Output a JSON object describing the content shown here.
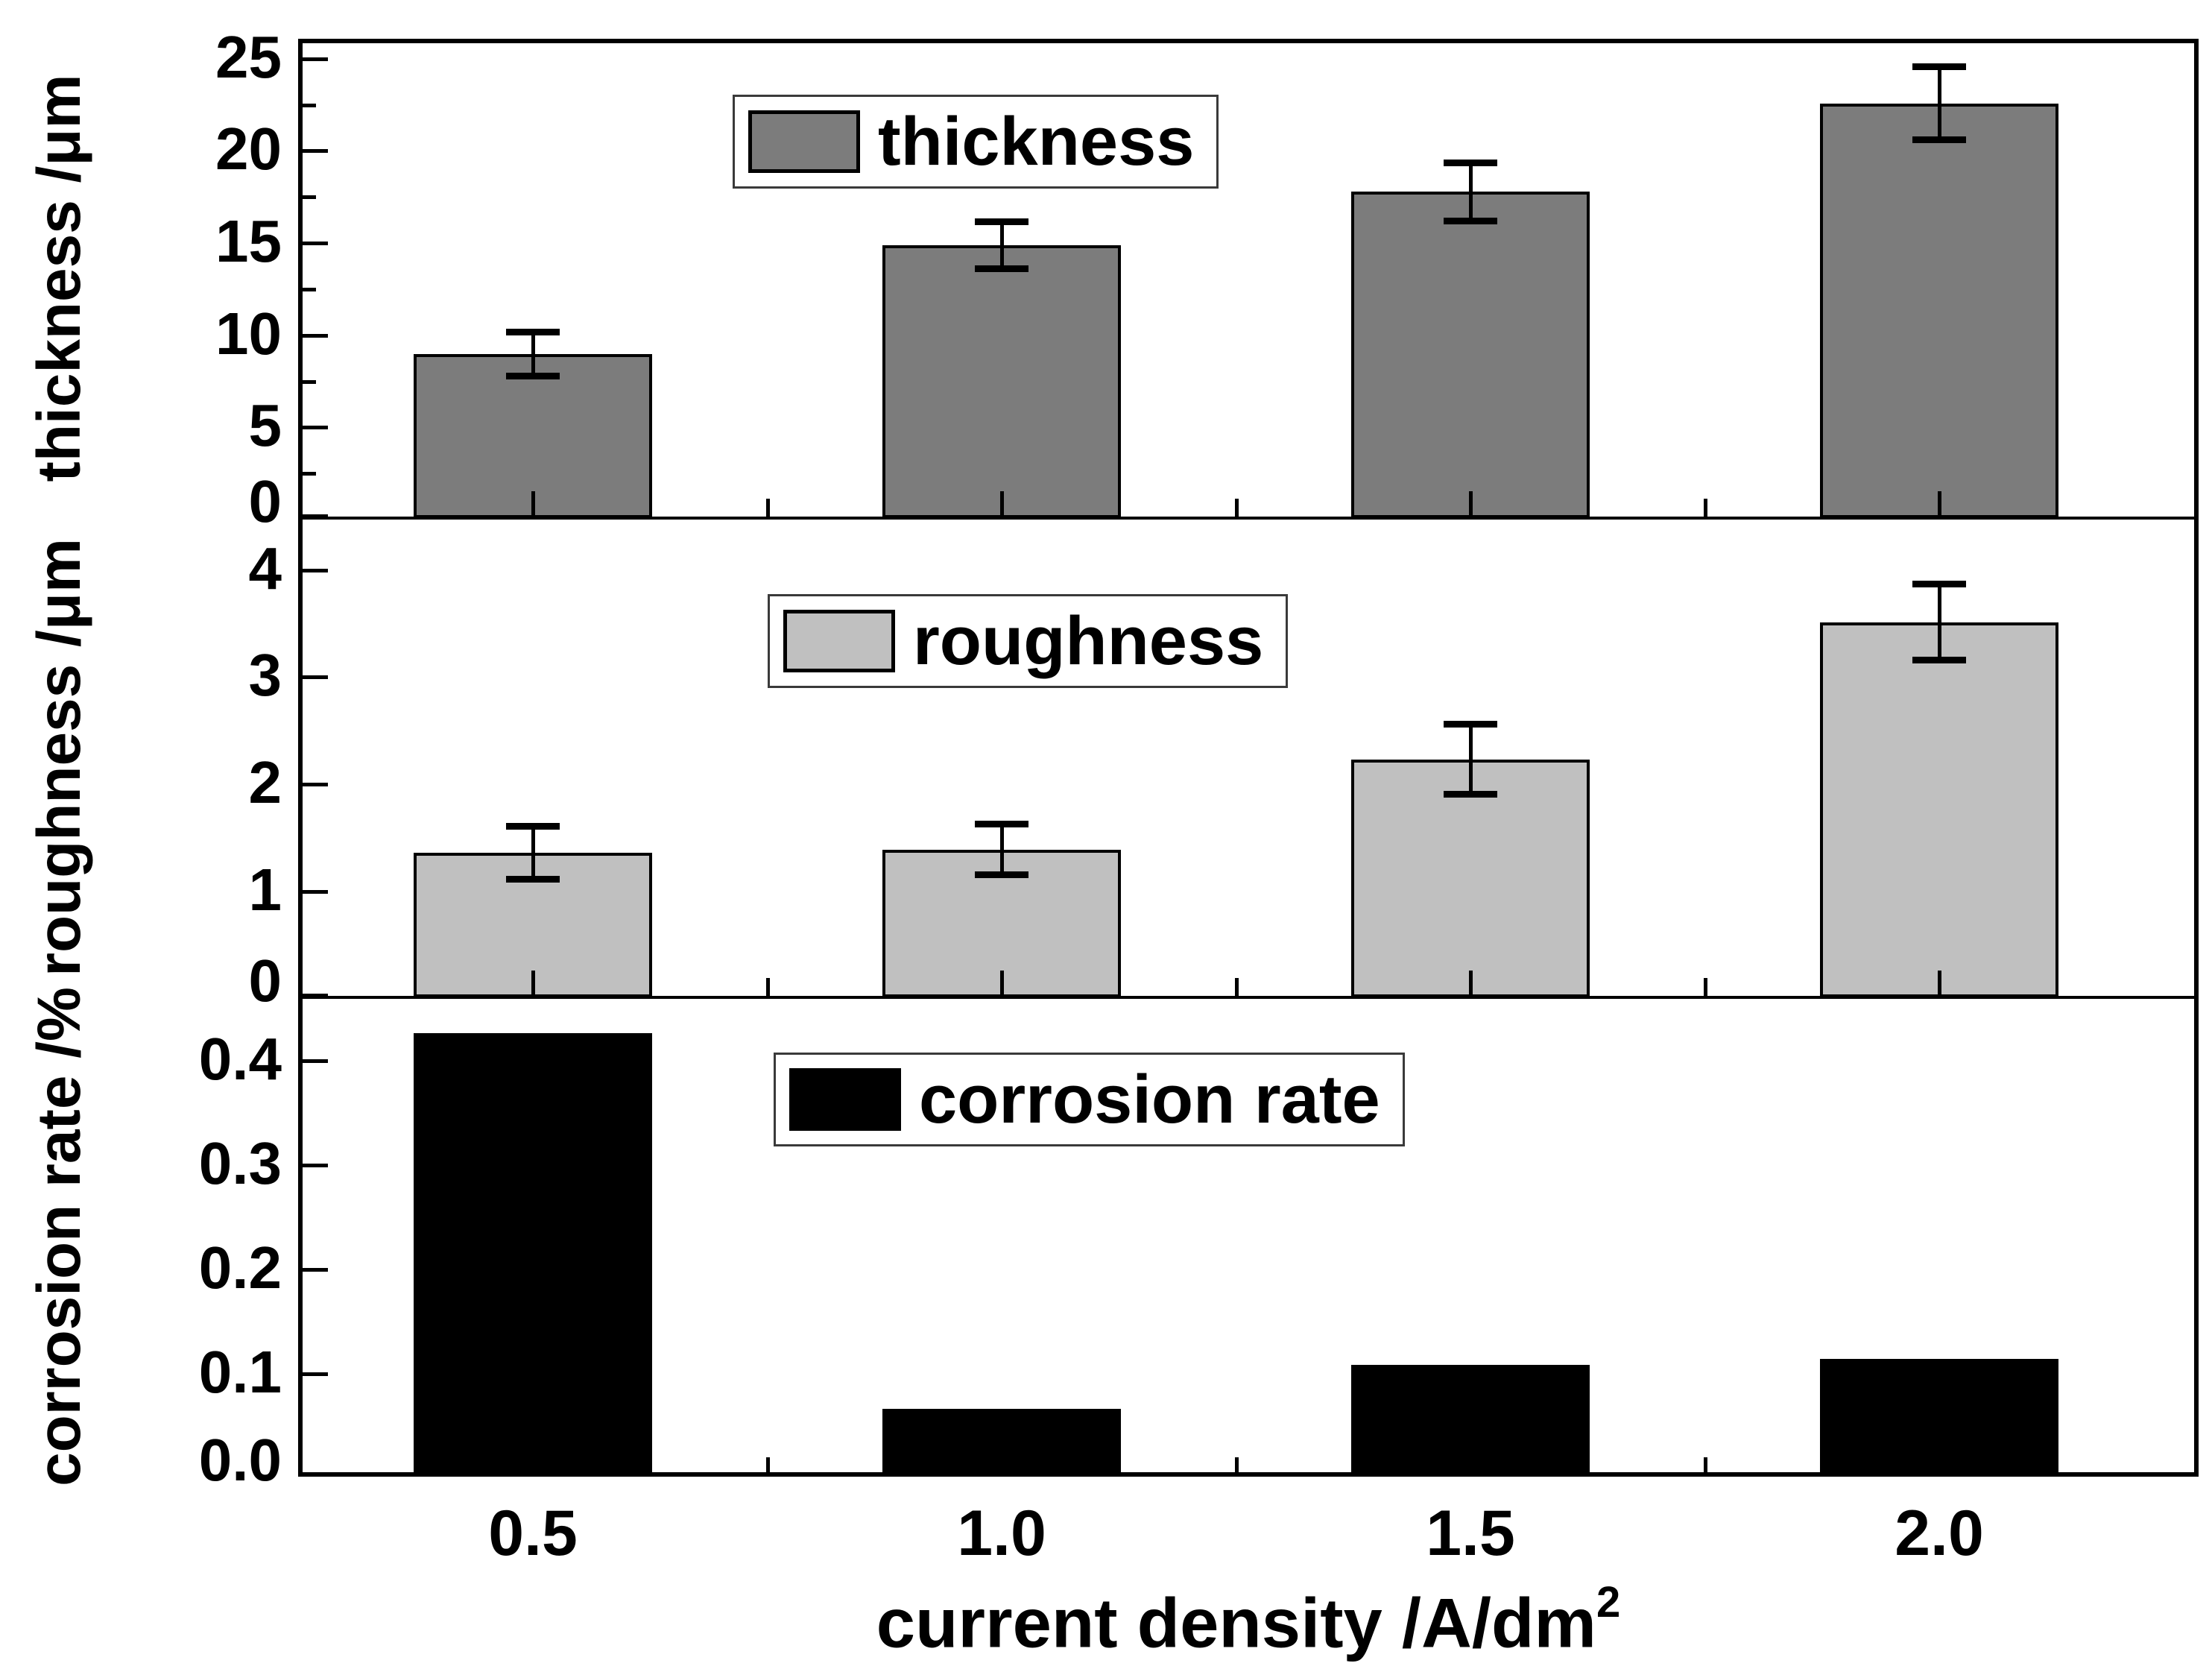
{
  "chart_data": {
    "type": "bar",
    "title": "",
    "categories": [
      "0.5",
      "1.0",
      "1.5",
      "2.0"
    ],
    "xlabel": "current density /A/dm",
    "xlabel_sup": "2",
    "grid": false,
    "legend_position": "inside-top",
    "panels": [
      {
        "id": "thickness",
        "legend": "thickness",
        "ylabel": "thickness /μm",
        "bar_color": "#7c7c7c",
        "ylim": [
          0,
          26
        ],
        "yticks": [
          {
            "v": 25,
            "label": "25"
          },
          {
            "v": 20,
            "label": "20"
          },
          {
            "v": 15,
            "label": "15"
          },
          {
            "v": 10,
            "label": "10"
          },
          {
            "v": 5,
            "label": "5"
          },
          {
            "v": 0,
            "label": "0"
          }
        ],
        "yminor": [
          22.5,
          17.5,
          12.5,
          7.5,
          2.5
        ],
        "values": [
          8.9,
          14.8,
          17.7,
          22.5
        ],
        "errors": [
          1.2,
          1.3,
          1.6,
          2.0
        ]
      },
      {
        "id": "roughness",
        "legend": "roughness",
        "ylabel": "roughness /μm",
        "bar_color": "#c0c0c0",
        "ylim": [
          0,
          4.47
        ],
        "yticks": [
          {
            "v": 4,
            "label": "4"
          },
          {
            "v": 3,
            "label": "3"
          },
          {
            "v": 2,
            "label": "2"
          },
          {
            "v": 1,
            "label": "1"
          },
          {
            "v": 0,
            "label": "0"
          }
        ],
        "yminor": [],
        "values": [
          1.35,
          1.38,
          2.22,
          3.5
        ],
        "errors": [
          0.25,
          0.24,
          0.33,
          0.36
        ]
      },
      {
        "id": "corrosion-rate",
        "legend": "corrosion rate",
        "ylabel": "corrosion rate /%",
        "bar_color": "#000000",
        "ylim": [
          0,
          0.459
        ],
        "yticks": [
          {
            "v": 0.4,
            "label": "0.4"
          },
          {
            "v": 0.3,
            "label": "0.3"
          },
          {
            "v": 0.2,
            "label": "0.2"
          },
          {
            "v": 0.1,
            "label": "0.1"
          },
          {
            "v": 0.0,
            "label": "0.0"
          }
        ],
        "yminor": [],
        "values": [
          0.425,
          0.065,
          0.107,
          0.113
        ],
        "errors": null
      }
    ]
  }
}
